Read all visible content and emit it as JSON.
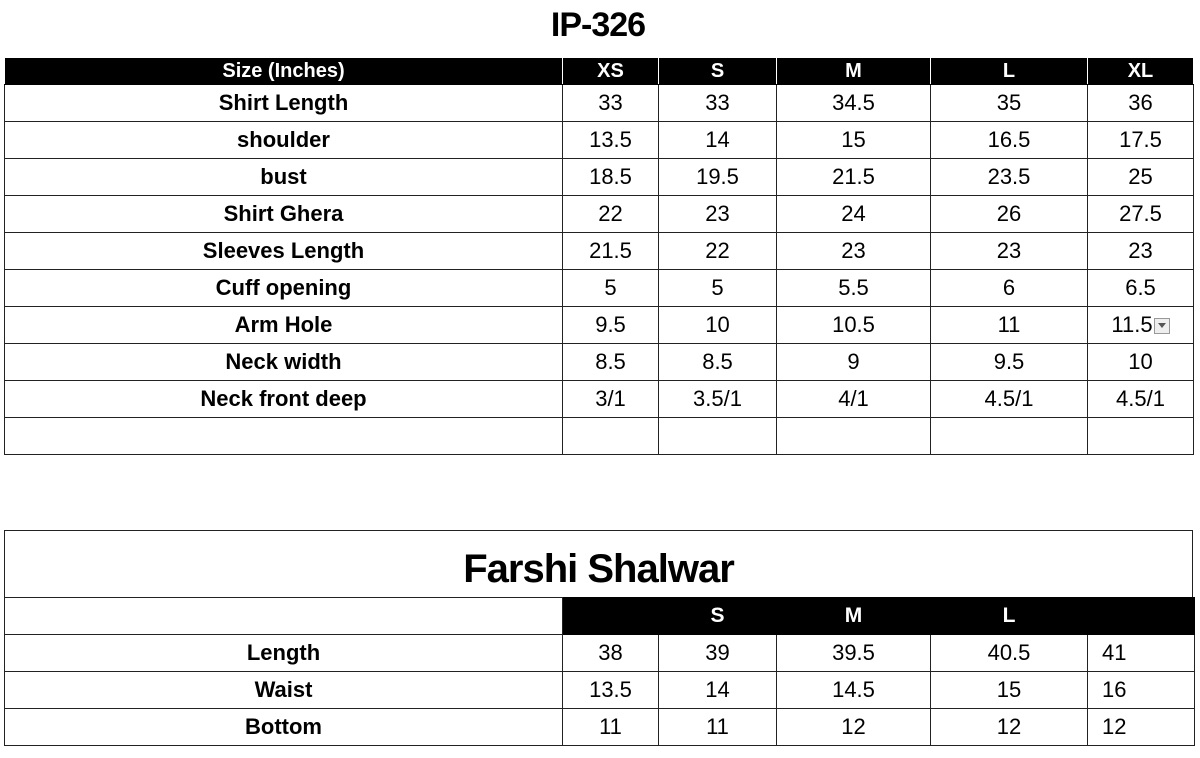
{
  "title": "IP-326",
  "shirt_table": {
    "header": [
      "Size (Inches)",
      "XS",
      "S",
      "M",
      "L",
      "XL"
    ],
    "rows": [
      {
        "label": "Shirt Length",
        "values": [
          "33",
          "33",
          "34.5",
          "35",
          "36"
        ]
      },
      {
        "label": "shoulder",
        "values": [
          "13.5",
          "14",
          "15",
          "16.5",
          "17.5"
        ]
      },
      {
        "label": "bust",
        "values": [
          "18.5",
          "19.5",
          "21.5",
          "23.5",
          "25"
        ]
      },
      {
        "label": "Shirt Ghera",
        "values": [
          "22",
          "23",
          "24",
          "26",
          "27.5"
        ]
      },
      {
        "label": "Sleeves Length",
        "values": [
          "21.5",
          "22",
          "23",
          "23",
          "23"
        ]
      },
      {
        "label": "Cuff opening",
        "values": [
          "5",
          "5",
          "5.5",
          "6",
          "6.5"
        ]
      },
      {
        "label": "Arm Hole",
        "values": [
          "9.5",
          "10",
          "10.5",
          "11",
          "11.5"
        ]
      },
      {
        "label": "Neck width",
        "values": [
          "8.5",
          "8.5",
          "9",
          "9.5",
          "10"
        ]
      },
      {
        "label": "Neck front deep",
        "values": [
          "3/1",
          "3.5/1",
          "4/1",
          "4.5/1",
          "4.5/1"
        ]
      },
      {
        "label": "",
        "values": [
          "",
          "",
          "",
          "",
          ""
        ]
      }
    ]
  },
  "shalwar_table": {
    "title": "Farshi Shalwar",
    "header": [
      "",
      "",
      "S",
      "M",
      "L",
      ""
    ],
    "rows": [
      {
        "label": "Length",
        "values": [
          "38",
          "39",
          "39.5",
          "40.5",
          "41"
        ]
      },
      {
        "label": "Waist",
        "values": [
          "13.5",
          "14",
          "14.5",
          "15",
          "16"
        ]
      },
      {
        "label": "Bottom",
        "values": [
          "11",
          "11",
          "12",
          "12",
          "12"
        ]
      }
    ]
  },
  "icons": {
    "dropdown": "dropdown-arrow-icon"
  }
}
